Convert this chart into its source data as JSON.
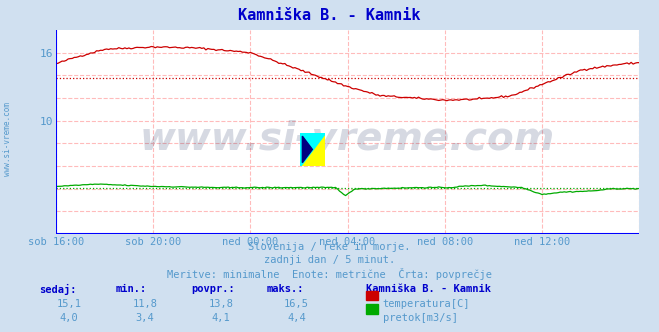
{
  "title": "Kamniška B. - Kamnik",
  "title_color": "#0000cc",
  "bg_color": "#d0e0f0",
  "plot_bg_color": "#ffffff",
  "grid_color": "#ffbbbb",
  "x_labels": [
    "sob 16:00",
    "sob 20:00",
    "ned 00:00",
    "ned 04:00",
    "ned 08:00",
    "ned 12:00"
  ],
  "x_ticks": [
    0,
    48,
    96,
    144,
    192,
    240
  ],
  "n_points": 289,
  "temp_color": "#cc0000",
  "flow_color": "#00aa00",
  "avg_temp": 13.8,
  "avg_flow": 4.1,
  "temp_min": 11.8,
  "temp_max": 16.5,
  "flow_min": 3.4,
  "flow_max": 4.4,
  "temp_now": 15.1,
  "flow_now": 4.0,
  "ylim": [
    0,
    18.0
  ],
  "ytick_vals": [
    10,
    16
  ],
  "watermark": "www.si-vreme.com",
  "watermark_color": "#203060",
  "watermark_alpha": 0.18,
  "subtitle1": "Slovenija / reke in morje.",
  "subtitle2": "zadnji dan / 5 minut.",
  "subtitle3": "Meritve: minimalne  Enote: metrične  Črta: povprečje",
  "subtitle_color": "#5599cc",
  "left_label": "www.si-vreme.com",
  "left_label_color": "#5599cc",
  "axis_color": "#0000ff",
  "tick_color": "#5599cc",
  "header_color": "#0000cc",
  "value_color": "#5599cc",
  "headers": [
    "sedaj:",
    "min.:",
    "povpr.:",
    "maks.:"
  ],
  "temp_vals": [
    "15,1",
    "11,8",
    "13,8",
    "16,5"
  ],
  "flow_vals": [
    "4,0",
    "3,4",
    "4,1",
    "4,4"
  ],
  "legend_title": "Kamniška B. - Kamnik",
  "legend_temp": "temperatura[C]",
  "legend_flow": "pretok[m3/s]"
}
